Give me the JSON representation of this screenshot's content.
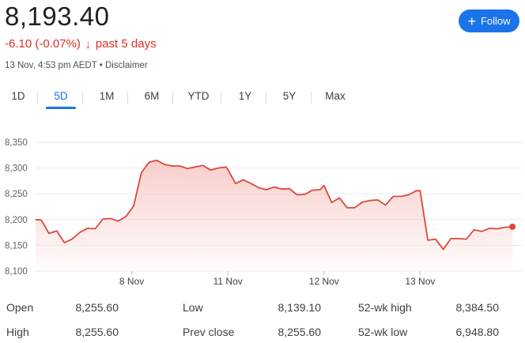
{
  "quote": {
    "price": "8,193.40",
    "change": "-6.10 (-0.07%)",
    "change_arrow": "↓",
    "period": "past 5 days",
    "timestamp": "13 Nov, 4:53 pm AEDT",
    "separator": " • ",
    "disclaimer": "Disclaimer"
  },
  "follow_button": {
    "icon": "plus-icon",
    "label": "Follow"
  },
  "range_tabs": [
    {
      "label": "1D",
      "active": false
    },
    {
      "label": "5D",
      "active": true
    },
    {
      "label": "1M",
      "active": false
    },
    {
      "label": "6M",
      "active": false
    },
    {
      "label": "YTD",
      "active": false
    },
    {
      "label": "1Y",
      "active": false
    },
    {
      "label": "5Y",
      "active": false
    },
    {
      "label": "Max",
      "active": false
    }
  ],
  "colors": {
    "line": "#e0463e",
    "fill_top": "#f6c6c2",
    "grid": "#e8eaed",
    "accent": "#1a73e8",
    "negative": "#d93025"
  },
  "chart_data": {
    "type": "area",
    "title": "",
    "xlabel": "",
    "ylabel": "",
    "ylim": [
      8100,
      8350
    ],
    "yticks": [
      "8,350",
      "8,300",
      "8,250",
      "8,200",
      "8,150",
      "8,100"
    ],
    "ytick_values": [
      8350,
      8300,
      8250,
      8200,
      8150,
      8100
    ],
    "xticks": [
      {
        "label": "8 Nov",
        "pos": 1
      },
      {
        "label": "11 Nov",
        "pos": 2
      },
      {
        "label": "12 Nov",
        "pos": 3
      },
      {
        "label": "13 Nov",
        "pos": 4
      }
    ],
    "xlim": [
      0,
      5
    ],
    "grid": true,
    "series": [
      {
        "x": [
          0.0,
          0.06,
          0.14,
          0.22,
          0.3,
          0.38,
          0.46,
          0.54,
          0.62,
          0.7,
          0.78,
          0.86,
          0.94,
          1.02,
          1.1,
          1.18,
          1.26,
          1.34,
          1.42,
          1.5,
          1.58,
          1.66,
          1.74,
          1.82,
          1.9,
          1.98,
          2.0,
          2.08,
          2.16,
          2.24,
          2.32,
          2.4,
          2.48,
          2.56,
          2.64,
          2.72,
          2.8,
          2.88,
          2.96,
          3.0,
          3.08,
          3.16,
          3.24,
          3.32,
          3.4,
          3.48,
          3.56,
          3.64,
          3.72,
          3.8,
          3.88,
          3.96,
          4.0,
          4.08,
          4.16,
          4.24,
          4.32,
          4.4,
          4.48,
          4.56,
          4.64,
          4.72,
          4.8,
          4.88,
          4.96
        ],
        "values": [
          8200,
          8199,
          8173,
          8178,
          8155,
          8162,
          8175,
          8183,
          8182,
          8201,
          8202,
          8197,
          8206,
          8226,
          8291,
          8311,
          8315,
          8307,
          8304,
          8304,
          8299,
          8302,
          8305,
          8296,
          8300,
          8302,
          8297,
          8270,
          8277,
          8270,
          8262,
          8258,
          8263,
          8259,
          8260,
          8248,
          8249,
          8257,
          8258,
          8266,
          8233,
          8242,
          8223,
          8223,
          8234,
          8237,
          8238,
          8228,
          8245,
          8245,
          8248,
          8256,
          8256,
          8160,
          8162,
          8142,
          8163,
          8163,
          8162,
          8180,
          8177,
          8183,
          8182,
          8185,
          8186
        ]
      }
    ]
  },
  "stats": {
    "open_label": "Open",
    "open_value": "8,255.60",
    "high_label": "High",
    "high_value": "8,255.60",
    "low_label": "Low",
    "low_value": "8,139.10",
    "prev_close_label": "Prev close",
    "prev_close_value": "8,255.60",
    "wk52_high_label": "52-wk high",
    "wk52_high_value": "8,384.50",
    "wk52_low_label": "52-wk low",
    "wk52_low_value": "6,948.80"
  }
}
